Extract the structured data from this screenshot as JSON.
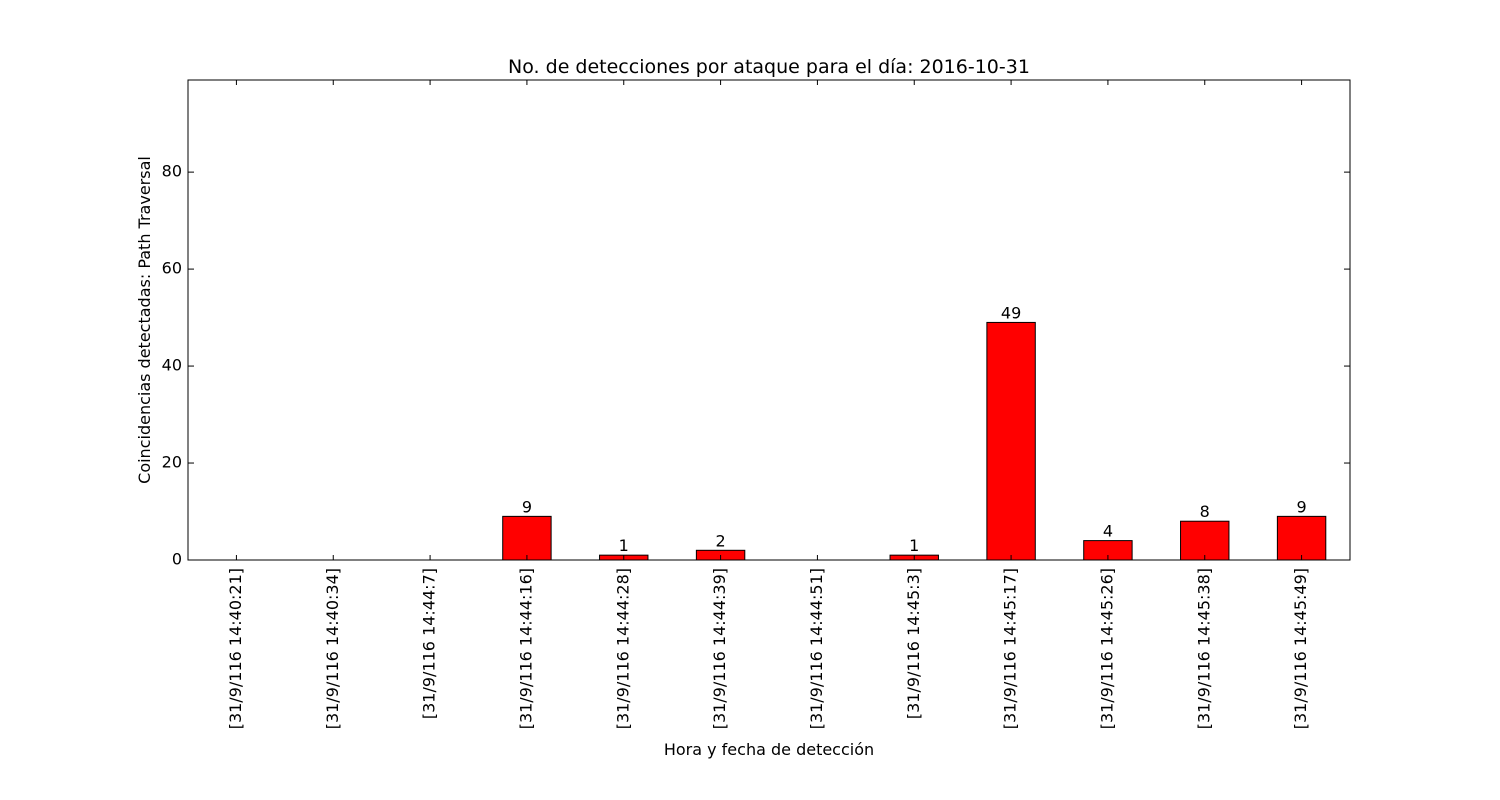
{
  "chart_data": {
    "type": "bar",
    "title": "No. de detecciones por ataque para el día: 2016-10-31",
    "xlabel": "Hora y fecha de detección",
    "ylabel": "Coincidencias detectadas: Path Traversal",
    "categories": [
      "[31/9/116 14:40:21]",
      "[31/9/116 14:40:34]",
      "[31/9/116 14:44:7]",
      "[31/9/116 14:44:16]",
      "[31/9/116 14:44:28]",
      "[31/9/116 14:44:39]",
      "[31/9/116 14:44:51]",
      "[31/9/116 14:45:3]",
      "[31/9/116 14:45:17]",
      "[31/9/116 14:45:26]",
      "[31/9/116 14:45:38]",
      "[31/9/116 14:45:49]"
    ],
    "values": [
      0,
      0,
      0,
      9,
      1,
      2,
      0,
      1,
      49,
      4,
      8,
      9
    ],
    "data_labels": [
      "",
      "",
      "",
      "9",
      "1",
      "2",
      "",
      "1",
      "49",
      "4",
      "8",
      "9"
    ],
    "ylim": [
      0,
      99
    ],
    "yticks": [
      0,
      20,
      40,
      60,
      80
    ],
    "bar_color": "#ff0000",
    "grid": false,
    "legend": "none"
  }
}
